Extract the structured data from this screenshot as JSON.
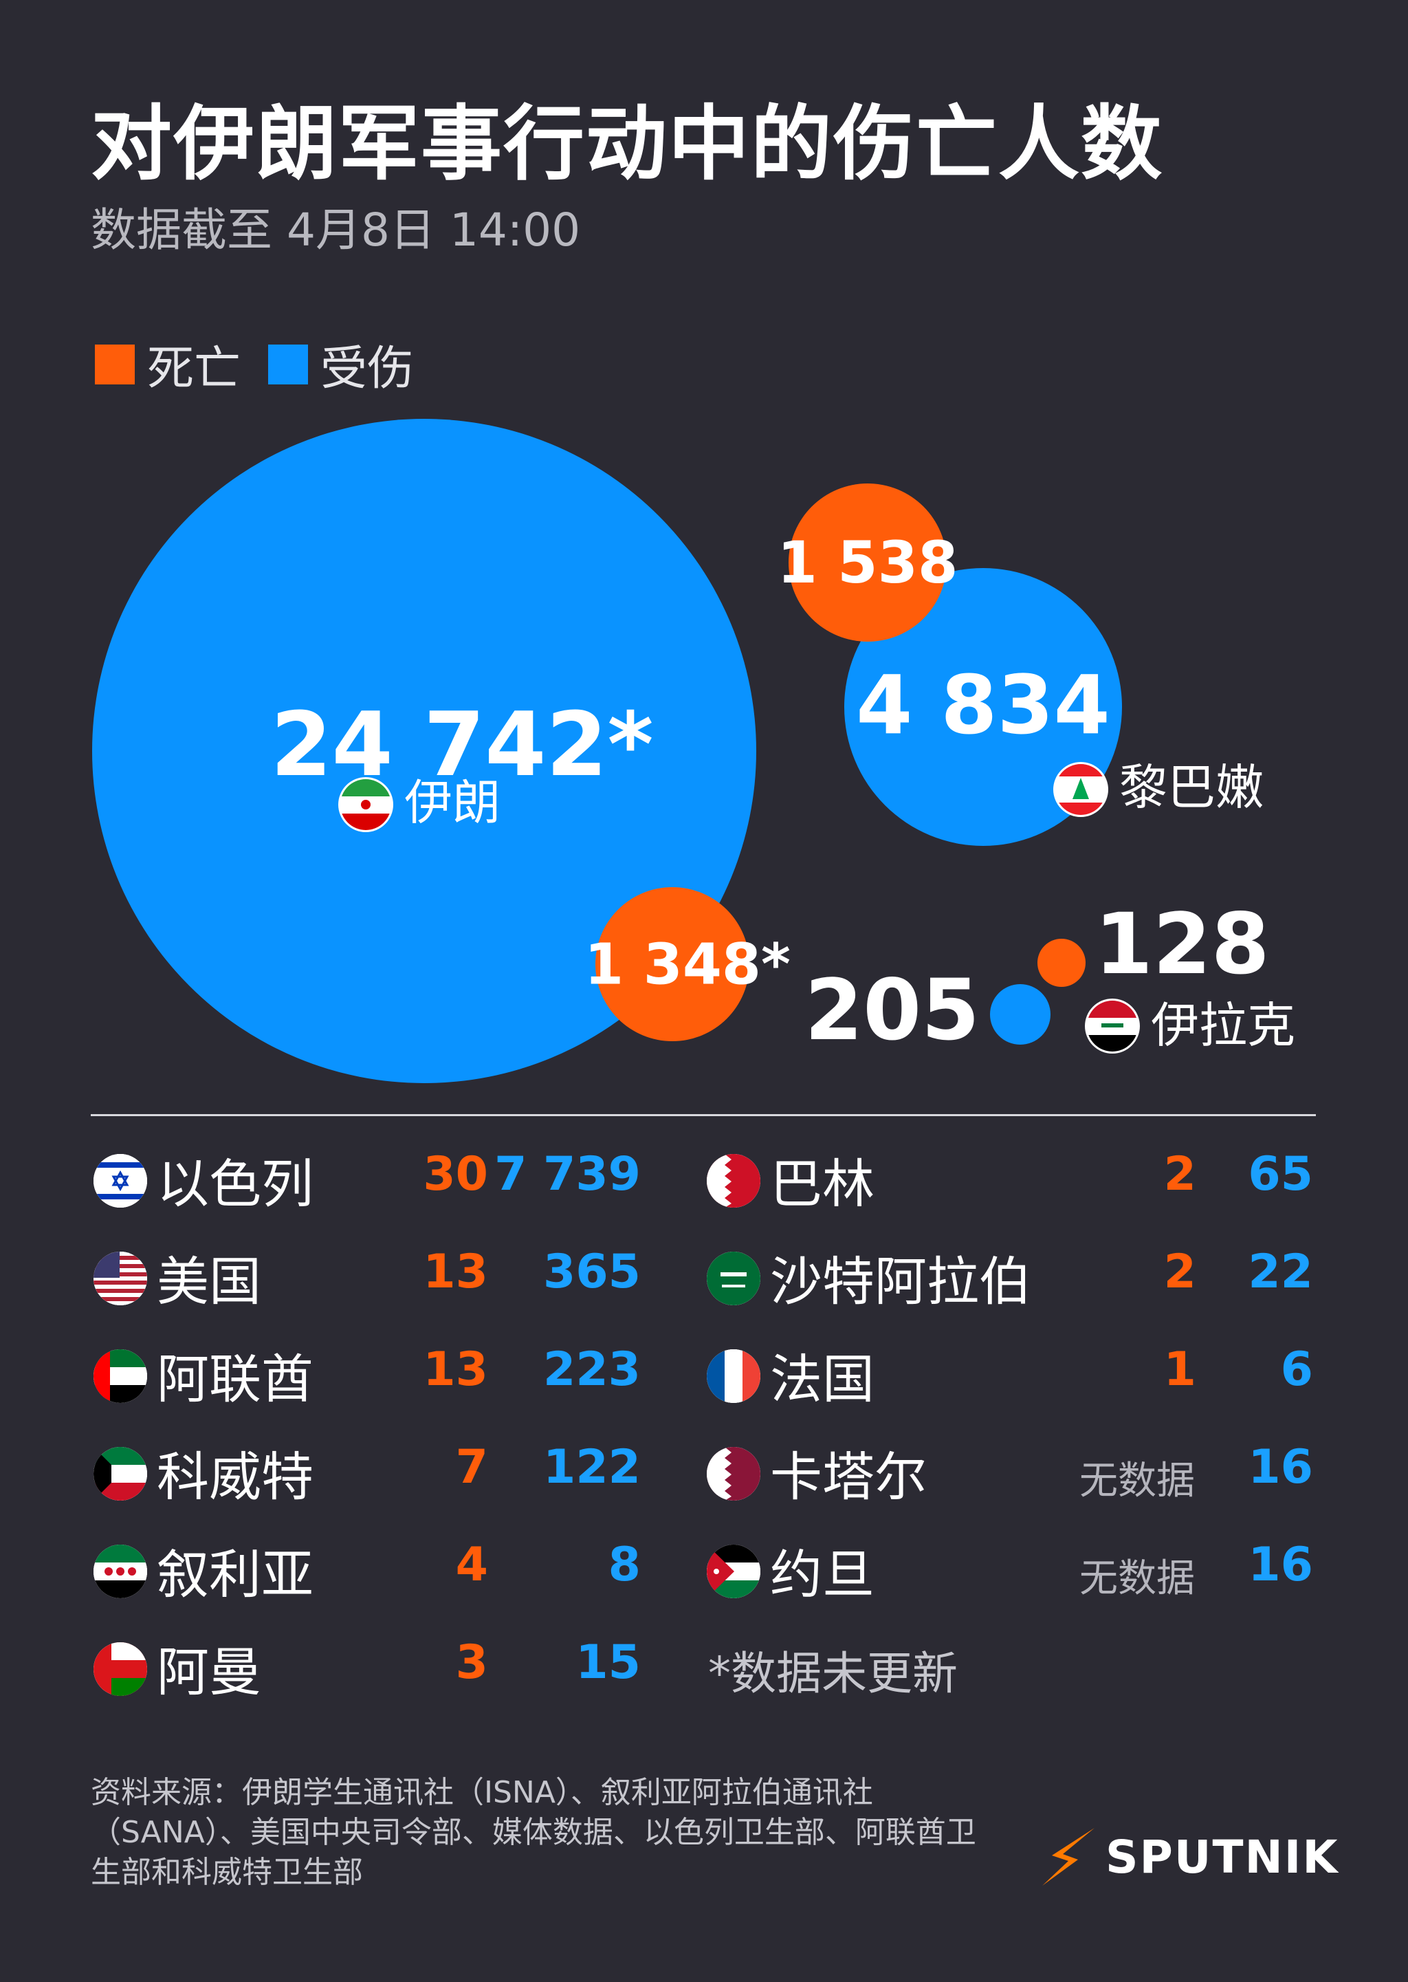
{
  "title": "对伊朗军事行动中的伤亡人数",
  "subtitle": "数据截至 4月8日 14:00",
  "legend": {
    "death_label": "死亡",
    "injured_label": "受伤"
  },
  "colors": {
    "death": "#ff5d0a",
    "injured": "#0a93ff",
    "background": "#2b2a33"
  },
  "chart_data": {
    "type": "bubble",
    "bubbles": [
      {
        "country": "伊朗",
        "injured_label": "24 742*",
        "death_label": "1 348*",
        "injured": 24742,
        "death": 1348
      },
      {
        "country": "黎巴嫩",
        "injured_label": "4 834",
        "death_label": "1 538",
        "injured": 4834,
        "death": 1538
      },
      {
        "country": "伊拉克",
        "injured_label": "205",
        "death_label": "128",
        "injured": 205,
        "death": 128
      }
    ]
  },
  "table": {
    "left": [
      {
        "country": "以色列",
        "flag": "israel-flag-icon",
        "death": "30",
        "injured": "7 739"
      },
      {
        "country": "美国",
        "flag": "usa-flag-icon",
        "death": "13",
        "injured": "365"
      },
      {
        "country": "阿联酋",
        "flag": "uae-flag-icon",
        "death": "13",
        "injured": "223"
      },
      {
        "country": "科威特",
        "flag": "kuwait-flag-icon",
        "death": "7",
        "injured": "122"
      },
      {
        "country": "叙利亚",
        "flag": "syria-flag-icon",
        "death": "4",
        "injured": "8"
      },
      {
        "country": "阿曼",
        "flag": "oman-flag-icon",
        "death": "3",
        "injured": "15"
      }
    ],
    "right": [
      {
        "country": "巴林",
        "flag": "bahrain-flag-icon",
        "death": "2",
        "injured": "65"
      },
      {
        "country": "沙特阿拉伯",
        "flag": "saudi-flag-icon",
        "death": "2",
        "injured": "22"
      },
      {
        "country": "法国",
        "flag": "france-flag-icon",
        "death": "1",
        "injured": "6"
      },
      {
        "country": "卡塔尔",
        "flag": "qatar-flag-icon",
        "death": "无数据",
        "injured": "16"
      },
      {
        "country": "约旦",
        "flag": "jordan-flag-icon",
        "death": "无数据",
        "injured": "16"
      }
    ],
    "footnote": "*数据未更新"
  },
  "source": "资料来源：伊朗学生通讯社（ISNA）、叙利亚阿拉伯通讯社（SANA）、美国中央司令部、媒体数据、以色列卫生部、阿联酋卫生部和科威特卫生部",
  "logo": {
    "text": "SPUTNIK",
    "icon": "sputnik-logo-icon"
  }
}
